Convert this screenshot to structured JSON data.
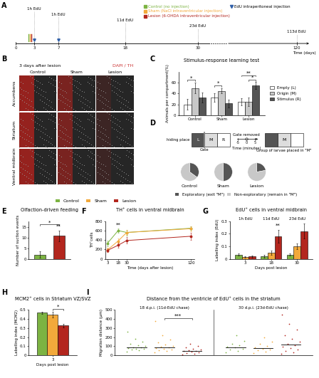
{
  "timeline": {
    "panel": "A",
    "ticks": [
      0,
      3,
      7,
      18,
      30,
      120
    ],
    "axis_label": "Time (days)",
    "injection_day": 3,
    "pulses": [
      {
        "day": 3,
        "end": 3,
        "label": "1h EdU"
      },
      {
        "day": 7,
        "end": 7,
        "label": "1h EdU"
      },
      {
        "day": 7,
        "end": 18,
        "label": "11d EdU"
      },
      {
        "day": 7,
        "end": 30,
        "label": "23d EdU"
      },
      {
        "day": 7,
        "end": 120,
        "label": "113d EdU"
      }
    ],
    "treatments": [
      {
        "label": "Control (no injection)",
        "color": "#7cb342"
      },
      {
        "label": "Sham (NaCl intraventricular injection)",
        "color": "#f2a93b"
      },
      {
        "label": "Lesion (6-OHDA intraventricular injection)",
        "color": "#b3261e"
      }
    ],
    "edu_label": "EdU intraperitoneal injection",
    "edu_color": "#2f5fa8"
  },
  "images": {
    "panel": "B",
    "title": "3 days after lesion",
    "stain": "DAPI / TH",
    "columns": [
      "Control",
      "Sham",
      "Lesion"
    ],
    "rows": [
      "Accumbens",
      "Striatum",
      "Ventral midbrain"
    ]
  },
  "test_diagram": {
    "hiding_place": "hiding place",
    "gate": "Gate",
    "gate_removed": "Gate removed",
    "compartments": [
      "L",
      "M",
      "R"
    ],
    "time_label": "Time (minutes)",
    "time_ticks": [
      -5,
      0,
      5
    ],
    "caption": "Group of larvae placed in \"M\""
  },
  "chart_data": [
    {
      "panel": "C",
      "type": "bar",
      "title": "Stimulus-response learning test",
      "y_label": "Animals per compartment(%)",
      "categories": [
        "Control",
        "Sham",
        "Lesion"
      ],
      "series": [
        {
          "name": "Empty (L)",
          "color": "#ffffff",
          "values": [
            20,
            33,
            25
          ],
          "errors": [
            10,
            8,
            7
          ]
        },
        {
          "name": "Origin (M)",
          "color": "#c8c8c8",
          "values": [
            50,
            45,
            25
          ],
          "errors": [
            10,
            5,
            8
          ]
        },
        {
          "name": "Stimulus (R)",
          "color": "#555555",
          "values": [
            33,
            22,
            55
          ],
          "errors": [
            9,
            7,
            6
          ]
        }
      ],
      "ylim": [
        0,
        80
      ],
      "yticks": [
        0,
        20,
        40,
        60
      ],
      "legend": "right",
      "significance": [
        {
          "label": "*",
          "category": 0,
          "bars": [
            0,
            1
          ]
        },
        {
          "label": "*",
          "category": 1,
          "bars": [
            0,
            1
          ]
        },
        {
          "label": "*",
          "category": 2,
          "bars": [
            1,
            2
          ]
        },
        {
          "label": "**",
          "category": 2,
          "bars": [
            0,
            2
          ]
        }
      ]
    },
    {
      "panel": "D",
      "type": "pie",
      "categories": [
        "Exploratory (exit \"M\")",
        "Non-exploratory (remain in \"M\")"
      ],
      "colors": [
        "#555555",
        "#c8c8c8"
      ],
      "legend": "bottom",
      "pies": [
        {
          "name": "Control",
          "values": [
            35,
            65
          ]
        },
        {
          "name": "Sham",
          "values": [
            50,
            50
          ]
        },
        {
          "name": "Lesion",
          "values": [
            22,
            78
          ]
        }
      ]
    },
    {
      "panel": "E",
      "type": "bar",
      "title": "Olfaction-driven feeding",
      "y_label": "Number of suction events",
      "categories": [
        "Control",
        "Lesion"
      ],
      "colors": [
        "#7cb342",
        "#b3261e"
      ],
      "values": [
        2,
        11
      ],
      "errors": [
        1.5,
        2.5
      ],
      "ylim": [
        0,
        18
      ],
      "yticks": [
        0,
        5,
        10,
        15
      ],
      "tick_labels": "y",
      "significance": [
        {
          "label": "**",
          "bars": [
            1
          ]
        },
        {
          "label": "*",
          "bars": [
            0,
            1
          ]
        }
      ]
    },
    {
      "panel": "F",
      "type": "line",
      "title": "TH⁺ cells in ventral midbrain",
      "x_label": "Time (days after lesion)",
      "y_label": "TH⁺cells",
      "x": [
        3,
        18,
        30,
        120
      ],
      "marker": "circle",
      "legend": "top",
      "series": [
        {
          "name": "Control",
          "color": "#7cb342",
          "values": [
            330,
            600,
            560,
            650
          ],
          "errors": [
            60,
            50,
            60,
            40
          ]
        },
        {
          "name": "Sham",
          "color": "#f2a93b",
          "values": [
            190,
            380,
            560,
            640
          ],
          "errors": [
            50,
            60,
            50,
            50
          ]
        },
        {
          "name": "Lesion",
          "color": "#b3261e",
          "values": [
            180,
            290,
            390,
            480
          ],
          "errors": [
            40,
            60,
            70,
            80
          ]
        }
      ],
      "xlim": [
        0,
        125
      ],
      "xticks": [
        3,
        18,
        30,
        120
      ],
      "ylim": [
        0,
        800
      ],
      "yticks": [
        0,
        200,
        400,
        600,
        800
      ],
      "significance": [
        {
          "label": "**",
          "x": 18
        }
      ]
    },
    {
      "panel": "G",
      "type": "bar",
      "title": "EdU⁺ cells in ventral midbrain",
      "x_label": "Days post lesion",
      "y_label": "Labelling index (EdU)",
      "categories": [
        "3",
        "18",
        "30"
      ],
      "category_titles": [
        "1h EdU",
        "11d EdU",
        "23d EdU"
      ],
      "series": [
        {
          "name": "Control",
          "color": "#7cb342",
          "values": [
            0.035,
            0.02,
            0.035
          ],
          "errors": [
            0.008,
            0.01,
            0.01
          ]
        },
        {
          "name": "Sham",
          "color": "#f2a93b",
          "values": [
            0.015,
            0.05,
            0.1
          ],
          "errors": [
            0.005,
            0.015,
            0.02
          ]
        },
        {
          "name": "Lesion",
          "color": "#b3261e",
          "values": [
            0.02,
            0.18,
            0.22
          ],
          "errors": [
            0.008,
            0.05,
            0.06
          ]
        }
      ],
      "ylim": [
        0,
        0.3
      ],
      "yticks": [
        0,
        0.1,
        0.2,
        0.3
      ],
      "significance": [
        {
          "label": "**",
          "category": 1,
          "bars": [
            2
          ]
        }
      ]
    },
    {
      "panel": "H",
      "type": "bar",
      "title": "MCM2⁺ cells in Striatum VZ/SVZ",
      "x_label": "Days post lesion",
      "y_label": "Labelling index (MCM2)",
      "categories": [
        "3"
      ],
      "series": [
        {
          "name": "Control",
          "color": "#7cb342",
          "values": [
            0.47
          ],
          "errors": [
            0.01
          ]
        },
        {
          "name": "Sham",
          "color": "#f2a93b",
          "values": [
            0.45
          ],
          "errors": [
            0.03
          ]
        },
        {
          "name": "Lesion",
          "color": "#b3261e",
          "values": [
            0.33
          ],
          "errors": [
            0.02
          ]
        }
      ],
      "ylim": [
        0,
        0.5
      ],
      "yticks": [
        0,
        0.1,
        0.2,
        0.3,
        0.4,
        0.5
      ],
      "significance": [
        {
          "label": "*",
          "category": 0,
          "bars": [
            1,
            2
          ]
        }
      ]
    },
    {
      "panel": "I",
      "type": "scatter",
      "title": "Distance from the ventricle of EdU⁺ cells in the striatum",
      "y_label": "Migration distance (μm)",
      "groups": [
        "18 d.p.i. (11d-EdU chase)",
        "30 d.p.i. (23d-EdU chase)"
      ],
      "series": [
        {
          "name": "Control",
          "color": "#7cb342",
          "values": [
            [
              40,
              55,
              60,
              70,
              75,
              80,
              85,
              90,
              100,
              110,
              125,
              150,
              180,
              260
            ],
            [
              30,
              50,
              65,
              75,
              85,
              95,
              110,
              130,
              160,
              220
            ]
          ]
        },
        {
          "name": "Sham",
          "color": "#f2a93b",
          "values": [
            [
              30,
              45,
              55,
              65,
              70,
              78,
              85,
              95,
              105,
              120,
              140,
              170,
              220,
              380
            ],
            [
              25,
              40,
              55,
              65,
              75,
              90,
              105,
              125,
              150,
              200
            ]
          ]
        },
        {
          "name": "Lesion",
          "color": "#b3261e",
          "values": [
            [
              10,
              20,
              28,
              35,
              40,
              45,
              50,
              55,
              62,
              70,
              85,
              100,
              130
            ],
            [
              20,
              35,
              50,
              65,
              80,
              95,
              110,
              130,
              150,
              180,
              220,
              280,
              350,
              450
            ]
          ]
        }
      ],
      "ylim": [
        0,
        500
      ],
      "yticks": [
        0,
        100,
        200,
        300,
        400,
        500
      ],
      "tick_labels": "y",
      "significance": [
        {
          "label": "***",
          "group": 0,
          "bars": [
            1,
            2
          ]
        }
      ]
    }
  ]
}
